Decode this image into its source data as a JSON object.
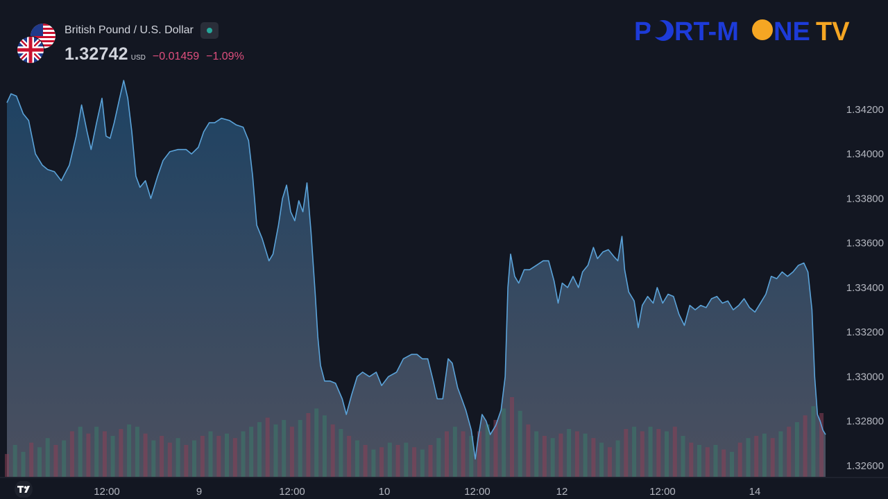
{
  "header": {
    "symbol_name": "British Pound / U.S. Dollar",
    "price": "1.32742",
    "currency": "USD",
    "change_abs": "−0.01459",
    "change_pct": "−1.09%",
    "flags": [
      "us-flag-icon",
      "uk-flag-icon"
    ],
    "status": "market-open-dot"
  },
  "logo": {
    "part1": "P",
    "part2": "RT-M",
    "part3": "NE",
    "part4": "TV"
  },
  "colors": {
    "background": "#131722",
    "line": "#5ba3d9",
    "area_top": "#1f4566",
    "area_bottom": "#4a4e5d",
    "volume_up": "#3a7a6a",
    "volume_down": "#8a3f55",
    "change": "#e04f7e",
    "axis_text": "#b2b5be",
    "logo_blue": "#1d3bd8",
    "logo_orange": "#f5a623"
  },
  "chart_data": {
    "type": "area",
    "yaxis_ticks": [
      "1.34200",
      "1.34000",
      "1.33800",
      "1.33600",
      "1.33400",
      "1.33200",
      "1.33000",
      "1.32800",
      "1.32600"
    ],
    "xaxis_ticks": [
      "12:00",
      "9",
      "12:00",
      "10",
      "12:00",
      "12",
      "12:00",
      "14"
    ],
    "ylim": [
      1.3255,
      1.3438
    ],
    "points": [
      [
        0.0,
        1.3423
      ],
      [
        0.6,
        1.3427
      ],
      [
        1.4,
        1.3426
      ],
      [
        2.4,
        1.3418
      ],
      [
        3.2,
        1.3415
      ],
      [
        4.2,
        1.34
      ],
      [
        5.2,
        1.3395
      ],
      [
        6.0,
        1.3393
      ],
      [
        7.0,
        1.3392
      ],
      [
        8.0,
        1.3388
      ],
      [
        9.2,
        1.3395
      ],
      [
        10.2,
        1.3408
      ],
      [
        11.0,
        1.3422
      ],
      [
        11.8,
        1.341
      ],
      [
        12.4,
        1.3402
      ],
      [
        13.2,
        1.3414
      ],
      [
        14.0,
        1.3425
      ],
      [
        14.6,
        1.3408
      ],
      [
        15.2,
        1.3407
      ],
      [
        15.8,
        1.3414
      ],
      [
        16.6,
        1.3425
      ],
      [
        17.2,
        1.3433
      ],
      [
        17.8,
        1.3425
      ],
      [
        18.4,
        1.341
      ],
      [
        19.0,
        1.339
      ],
      [
        19.6,
        1.3385
      ],
      [
        20.4,
        1.3388
      ],
      [
        21.2,
        1.338
      ],
      [
        22.2,
        1.339
      ],
      [
        23.0,
        1.3397
      ],
      [
        24.0,
        1.3401
      ],
      [
        25.2,
        1.3402
      ],
      [
        26.4,
        1.3402
      ],
      [
        27.2,
        1.34
      ],
      [
        28.2,
        1.3403
      ],
      [
        29.0,
        1.341
      ],
      [
        29.8,
        1.3414
      ],
      [
        30.6,
        1.3414
      ],
      [
        31.6,
        1.3416
      ],
      [
        32.8,
        1.3415
      ],
      [
        33.8,
        1.3413
      ],
      [
        34.8,
        1.3412
      ],
      [
        35.6,
        1.3406
      ],
      [
        36.2,
        1.339
      ],
      [
        36.8,
        1.3368
      ],
      [
        37.6,
        1.3362
      ],
      [
        38.6,
        1.3352
      ],
      [
        39.2,
        1.3355
      ],
      [
        40.0,
        1.3368
      ],
      [
        40.6,
        1.338
      ],
      [
        41.2,
        1.3386
      ],
      [
        41.8,
        1.3374
      ],
      [
        42.4,
        1.337
      ],
      [
        43.0,
        1.3379
      ],
      [
        43.6,
        1.3374
      ],
      [
        44.2,
        1.3387
      ],
      [
        44.8,
        1.3365
      ],
      [
        45.4,
        1.3338
      ],
      [
        45.8,
        1.3318
      ],
      [
        46.2,
        1.3305
      ],
      [
        46.8,
        1.3298
      ],
      [
        47.6,
        1.3298
      ],
      [
        48.4,
        1.3297
      ],
      [
        49.4,
        1.329
      ],
      [
        50.0,
        1.3283
      ],
      [
        50.8,
        1.3292
      ],
      [
        51.6,
        1.33
      ],
      [
        52.4,
        1.3302
      ],
      [
        53.4,
        1.33
      ],
      [
        54.4,
        1.3302
      ],
      [
        55.2,
        1.3296
      ],
      [
        56.2,
        1.33
      ],
      [
        57.4,
        1.3302
      ],
      [
        58.4,
        1.3308
      ],
      [
        59.6,
        1.331
      ],
      [
        60.4,
        1.331
      ],
      [
        61.2,
        1.3308
      ],
      [
        62.0,
        1.3308
      ],
      [
        62.8,
        1.3298
      ],
      [
        63.4,
        1.329
      ],
      [
        64.2,
        1.329
      ],
      [
        65.0,
        1.3308
      ],
      [
        65.6,
        1.3306
      ],
      [
        66.4,
        1.3295
      ],
      [
        67.0,
        1.329
      ],
      [
        67.6,
        1.3285
      ],
      [
        68.4,
        1.3276
      ],
      [
        69.0,
        1.3263
      ],
      [
        69.4,
        1.3272
      ],
      [
        70.0,
        1.3283
      ],
      [
        70.6,
        1.328
      ],
      [
        71.2,
        1.3274
      ],
      [
        72.0,
        1.3278
      ],
      [
        72.8,
        1.3285
      ],
      [
        73.4,
        1.33
      ],
      [
        73.8,
        1.334
      ],
      [
        74.2,
        1.3355
      ],
      [
        74.8,
        1.3345
      ],
      [
        75.4,
        1.3342
      ],
      [
        76.2,
        1.3348
      ],
      [
        77.0,
        1.3348
      ],
      [
        78.0,
        1.335
      ],
      [
        79.0,
        1.3352
      ],
      [
        79.8,
        1.3352
      ],
      [
        80.6,
        1.3343
      ],
      [
        81.2,
        1.3333
      ],
      [
        81.8,
        1.3342
      ],
      [
        82.6,
        1.334
      ],
      [
        83.4,
        1.3345
      ],
      [
        84.2,
        1.334
      ],
      [
        84.8,
        1.3347
      ],
      [
        85.6,
        1.335
      ],
      [
        86.4,
        1.3358
      ],
      [
        87.0,
        1.3353
      ],
      [
        87.8,
        1.3356
      ],
      [
        88.6,
        1.3357
      ],
      [
        89.4,
        1.3354
      ],
      [
        90.0,
        1.3352
      ],
      [
        90.6,
        1.3363
      ],
      [
        91.0,
        1.3348
      ],
      [
        91.6,
        1.3338
      ],
      [
        92.4,
        1.3334
      ],
      [
        93.0,
        1.3322
      ],
      [
        93.6,
        1.3332
      ],
      [
        94.4,
        1.3336
      ],
      [
        95.2,
        1.3333
      ],
      [
        95.8,
        1.334
      ],
      [
        96.6,
        1.3333
      ],
      [
        97.4,
        1.3337
      ],
      [
        98.2,
        1.3336
      ],
      [
        99.0,
        1.3328
      ],
      [
        99.8,
        1.3323
      ],
      [
        100.6,
        1.3332
      ],
      [
        101.4,
        1.333
      ],
      [
        102.2,
        1.3332
      ],
      [
        103.0,
        1.3331
      ],
      [
        103.8,
        1.3335
      ],
      [
        104.6,
        1.3336
      ],
      [
        105.4,
        1.3333
      ],
      [
        106.2,
        1.3334
      ],
      [
        107.0,
        1.333
      ],
      [
        107.8,
        1.3332
      ],
      [
        108.6,
        1.3335
      ],
      [
        109.4,
        1.3331
      ],
      [
        110.2,
        1.3329
      ],
      [
        111.0,
        1.3333
      ],
      [
        111.8,
        1.3337
      ],
      [
        112.6,
        1.3345
      ],
      [
        113.4,
        1.3344
      ],
      [
        114.2,
        1.3347
      ],
      [
        115.0,
        1.3345
      ],
      [
        115.8,
        1.3347
      ],
      [
        116.6,
        1.335
      ],
      [
        117.4,
        1.3351
      ],
      [
        118.0,
        1.3347
      ],
      [
        118.6,
        1.333
      ],
      [
        119.0,
        1.33
      ],
      [
        119.4,
        1.3283
      ],
      [
        119.8,
        1.328
      ],
      [
        120.2,
        1.3276
      ],
      [
        120.6,
        1.3274
      ]
    ],
    "volume": [
      [
        0.0,
        0.2,
        0
      ],
      [
        1.2,
        0.28,
        1
      ],
      [
        2.4,
        0.22,
        1
      ],
      [
        3.6,
        0.3,
        0
      ],
      [
        4.8,
        0.26,
        1
      ],
      [
        6.0,
        0.34,
        1
      ],
      [
        7.2,
        0.28,
        0
      ],
      [
        8.4,
        0.32,
        1
      ],
      [
        9.6,
        0.4,
        0
      ],
      [
        10.8,
        0.44,
        1
      ],
      [
        12.0,
        0.38,
        0
      ],
      [
        13.2,
        0.44,
        1
      ],
      [
        14.4,
        0.4,
        0
      ],
      [
        15.6,
        0.36,
        1
      ],
      [
        16.8,
        0.42,
        0
      ],
      [
        18.0,
        0.46,
        1
      ],
      [
        19.2,
        0.44,
        1
      ],
      [
        20.4,
        0.38,
        0
      ],
      [
        21.6,
        0.32,
        1
      ],
      [
        22.8,
        0.36,
        0
      ],
      [
        24.0,
        0.3,
        0
      ],
      [
        25.2,
        0.34,
        1
      ],
      [
        26.4,
        0.28,
        0
      ],
      [
        27.6,
        0.32,
        1
      ],
      [
        28.8,
        0.36,
        0
      ],
      [
        30.0,
        0.4,
        1
      ],
      [
        31.2,
        0.36,
        0
      ],
      [
        32.4,
        0.38,
        1
      ],
      [
        33.6,
        0.34,
        0
      ],
      [
        34.8,
        0.4,
        1
      ],
      [
        36.0,
        0.44,
        1
      ],
      [
        37.2,
        0.48,
        1
      ],
      [
        38.4,
        0.52,
        0
      ],
      [
        39.6,
        0.46,
        1
      ],
      [
        40.8,
        0.5,
        1
      ],
      [
        42.0,
        0.44,
        0
      ],
      [
        43.2,
        0.5,
        1
      ],
      [
        44.4,
        0.56,
        0
      ],
      [
        45.6,
        0.6,
        1
      ],
      [
        46.8,
        0.54,
        1
      ],
      [
        48.0,
        0.46,
        0
      ],
      [
        49.2,
        0.42,
        1
      ],
      [
        50.4,
        0.36,
        0
      ],
      [
        51.6,
        0.32,
        1
      ],
      [
        52.8,
        0.28,
        0
      ],
      [
        54.0,
        0.24,
        1
      ],
      [
        55.2,
        0.26,
        0
      ],
      [
        56.4,
        0.3,
        1
      ],
      [
        57.6,
        0.28,
        0
      ],
      [
        58.8,
        0.3,
        1
      ],
      [
        60.0,
        0.26,
        0
      ],
      [
        61.2,
        0.24,
        1
      ],
      [
        62.4,
        0.28,
        0
      ],
      [
        63.6,
        0.34,
        1
      ],
      [
        64.8,
        0.4,
        0
      ],
      [
        66.0,
        0.44,
        1
      ],
      [
        67.2,
        0.4,
        0
      ],
      [
        68.4,
        0.36,
        1
      ],
      [
        69.6,
        0.4,
        0
      ],
      [
        70.8,
        0.46,
        1
      ],
      [
        72.0,
        0.5,
        0
      ],
      [
        73.2,
        0.6,
        1
      ],
      [
        74.4,
        0.7,
        0
      ],
      [
        75.6,
        0.58,
        1
      ],
      [
        76.8,
        0.46,
        0
      ],
      [
        78.0,
        0.4,
        1
      ],
      [
        79.2,
        0.36,
        0
      ],
      [
        80.4,
        0.34,
        1
      ],
      [
        81.6,
        0.38,
        0
      ],
      [
        82.8,
        0.42,
        1
      ],
      [
        84.0,
        0.4,
        0
      ],
      [
        85.2,
        0.38,
        1
      ],
      [
        86.4,
        0.34,
        0
      ],
      [
        87.6,
        0.3,
        1
      ],
      [
        88.8,
        0.26,
        0
      ],
      [
        90.0,
        0.32,
        1
      ],
      [
        91.2,
        0.42,
        0
      ],
      [
        92.4,
        0.44,
        1
      ],
      [
        93.6,
        0.4,
        0
      ],
      [
        94.8,
        0.44,
        1
      ],
      [
        96.0,
        0.42,
        0
      ],
      [
        97.2,
        0.4,
        1
      ],
      [
        98.4,
        0.44,
        0
      ],
      [
        99.6,
        0.36,
        1
      ],
      [
        100.8,
        0.3,
        0
      ],
      [
        102.0,
        0.28,
        1
      ],
      [
        103.2,
        0.26,
        0
      ],
      [
        104.4,
        0.28,
        1
      ],
      [
        105.6,
        0.24,
        0
      ],
      [
        106.8,
        0.22,
        1
      ],
      [
        108.0,
        0.3,
        0
      ],
      [
        109.2,
        0.34,
        1
      ],
      [
        110.4,
        0.36,
        0
      ],
      [
        111.6,
        0.38,
        1
      ],
      [
        112.8,
        0.34,
        0
      ],
      [
        114.0,
        0.4,
        1
      ],
      [
        115.2,
        0.44,
        0
      ],
      [
        116.4,
        0.48,
        1
      ],
      [
        117.6,
        0.54,
        0
      ],
      [
        118.8,
        0.62,
        1
      ],
      [
        120.0,
        0.56,
        0
      ]
    ]
  }
}
